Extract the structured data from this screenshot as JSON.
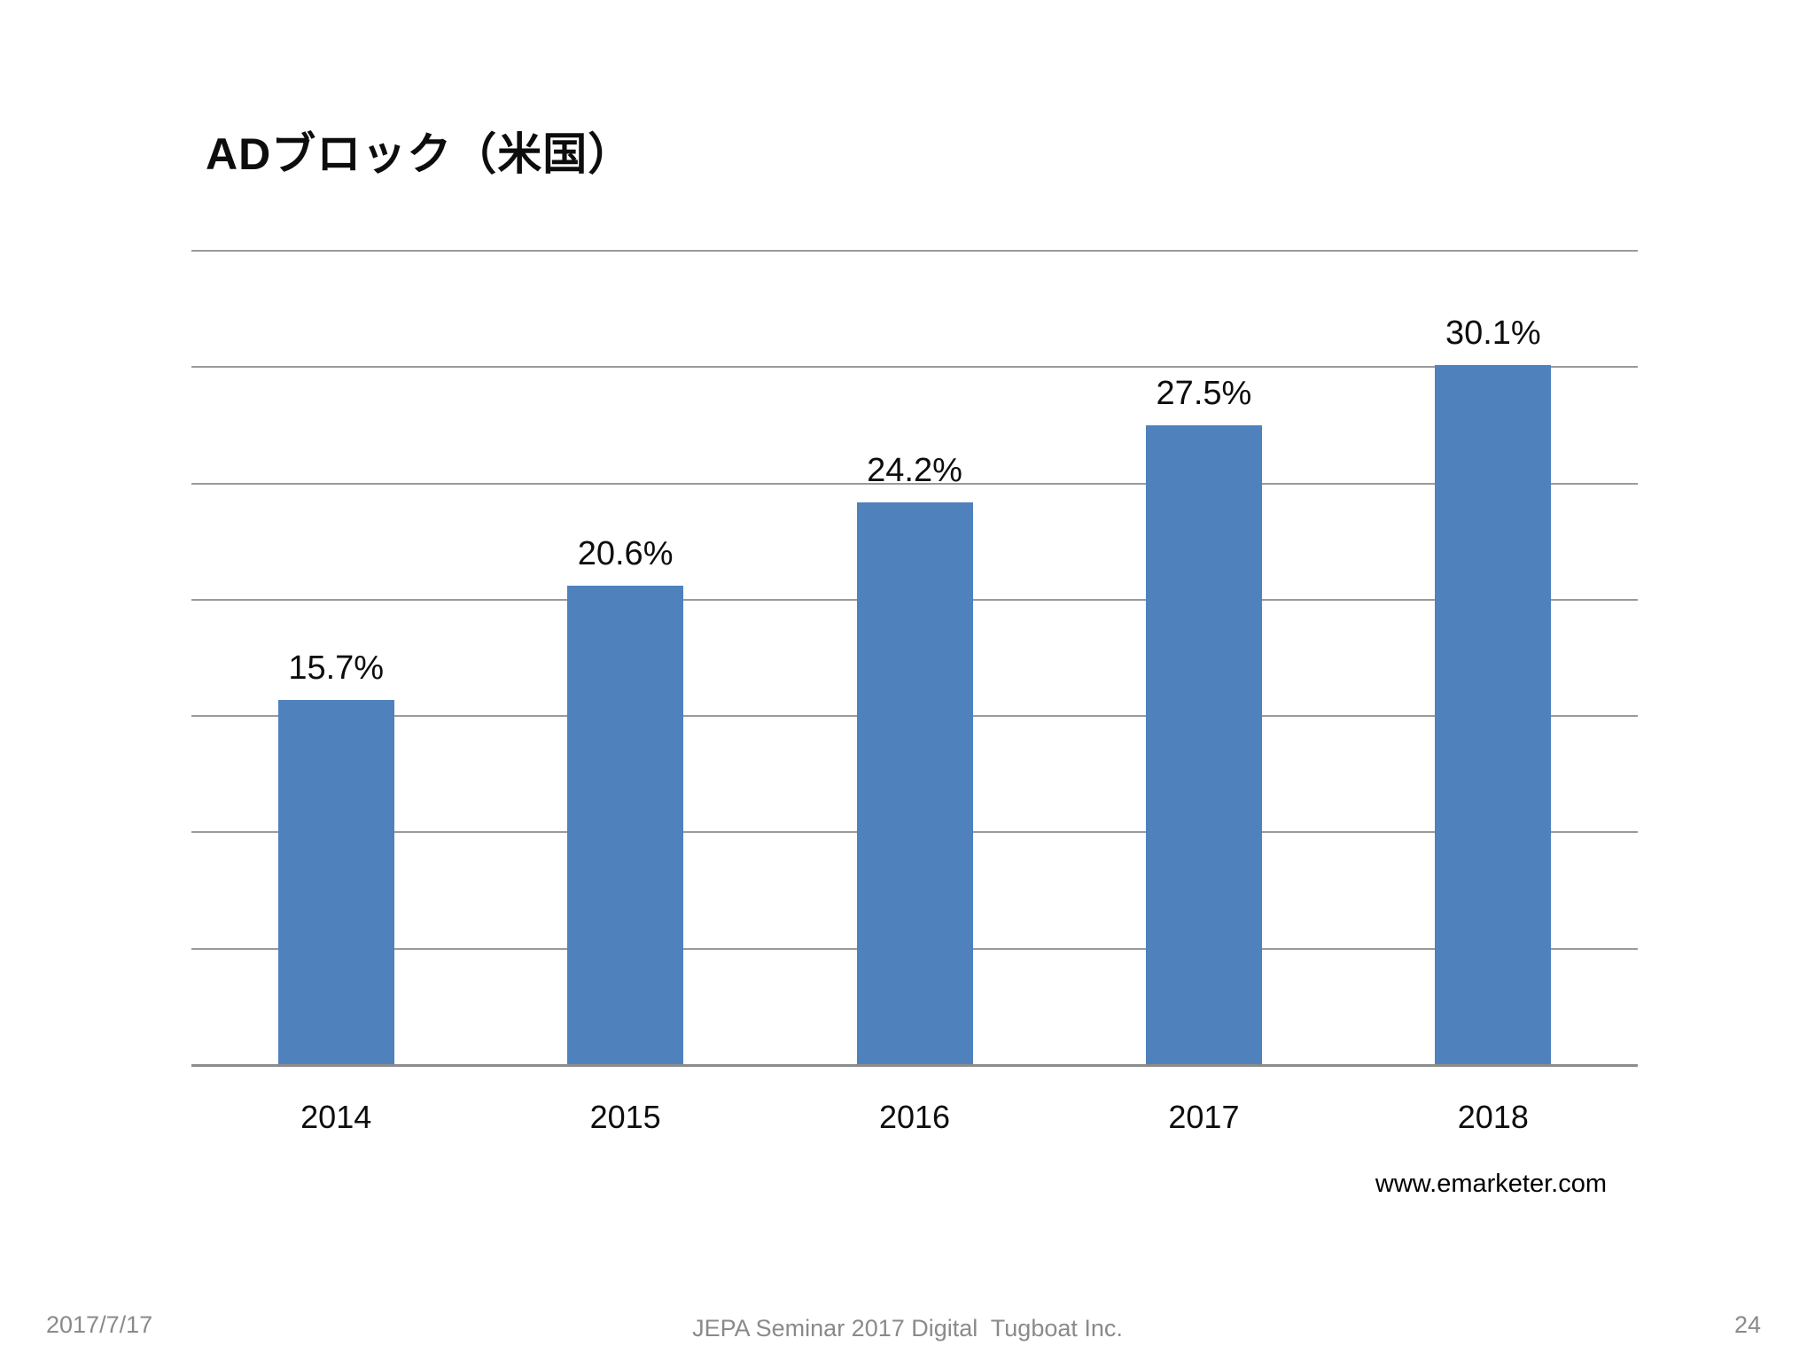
{
  "slide": {
    "title": "ADブロック（米国）",
    "source": "www.emarketer.com",
    "footer": {
      "date": "2017/7/17",
      "center": "JEPA Seminar 2017 Digital  Tugboat Inc.",
      "page": "24"
    }
  },
  "colors": {
    "bar": "#4F81BD",
    "gridline": "#9a9a9a",
    "axis_line": "#8c8c8c",
    "footer_text": "#8a8a8a",
    "text": "#0d0d0d"
  },
  "chart_data": {
    "type": "bar",
    "title": "ADブロック（米国）",
    "categories": [
      "2014",
      "2015",
      "2016",
      "2017",
      "2018"
    ],
    "values": [
      15.7,
      20.6,
      24.2,
      27.5,
      30.1
    ],
    "value_labels": [
      "15.7%",
      "20.6%",
      "24.2%",
      "27.5%",
      "30.1%"
    ],
    "xlabel": "",
    "ylabel": "",
    "ylim": [
      0,
      35
    ],
    "grid_step": 5,
    "grid": true,
    "legend": false,
    "y_tick_labels_visible": false,
    "bar_color": "#4F81BD",
    "source": "www.emarketer.com"
  }
}
